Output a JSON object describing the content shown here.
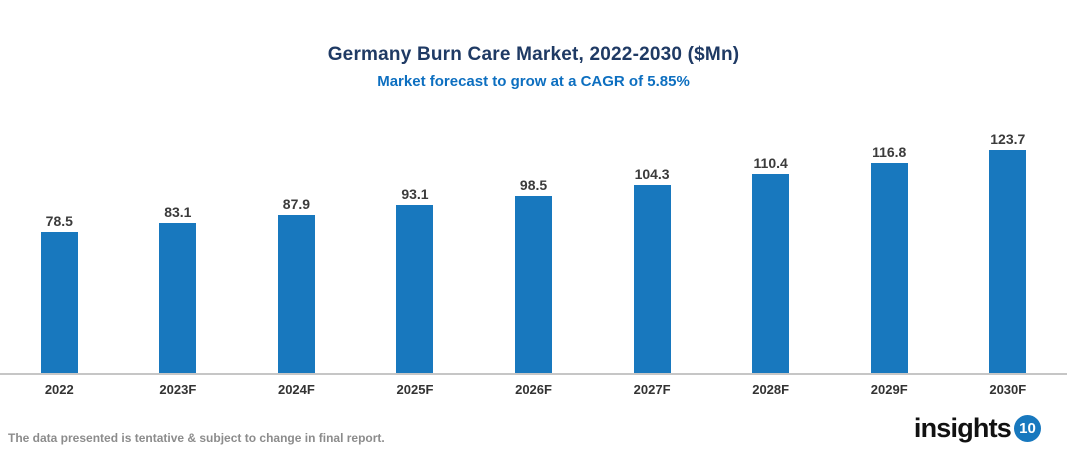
{
  "header": {
    "title": "Germany Burn Care Market, 2022-2030 ($Mn)",
    "subtitle": "Market forecast to grow at a CAGR of 5.85%"
  },
  "chart_data": {
    "type": "bar",
    "title": "Germany Burn Care Market, 2022-2030 ($Mn)",
    "subtitle": "Market forecast to grow at a CAGR of 5.85%",
    "categories": [
      "2022",
      "2023F",
      "2024F",
      "2025F",
      "2026F",
      "2027F",
      "2028F",
      "2029F",
      "2030F"
    ],
    "values": [
      78.5,
      83.1,
      87.9,
      93.1,
      98.5,
      104.3,
      110.4,
      116.8,
      123.7
    ],
    "xlabel": "",
    "ylabel": "",
    "ylim": [
      0,
      130
    ],
    "grid": false,
    "legend_position": "none",
    "value_labels": true,
    "bar_color": "#1878be"
  },
  "footer": {
    "disclaimer": "The data presented is tentative & subject to change in final report.",
    "logo_text": "insights",
    "logo_badge": "10"
  },
  "colors": {
    "bar": "#1878be",
    "title": "#1f3a64",
    "subtitle": "#0d6fc0",
    "axis_line": "#c6c6c6",
    "value_label": "#3b3b3b",
    "x_label": "#333333",
    "disclaimer": "#8c8c8c",
    "logo_badge_bg": "#1878be"
  }
}
